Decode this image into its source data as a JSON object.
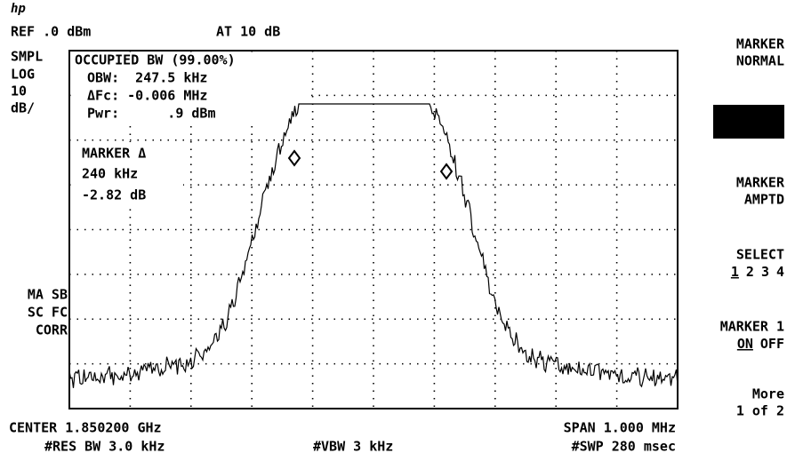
{
  "header": {
    "logo": "hp",
    "ref": "REF .0 dBm",
    "atten": "AT 10 dB"
  },
  "left_labels": [
    "SMPL",
    "LOG",
    "10",
    "dB/"
  ],
  "correction_labels": [
    "MA SB",
    "SC FC",
    "CORR"
  ],
  "measurement": {
    "title": "OCCUPIED BW (99.00%)",
    "lines": [
      "OBW:  247.5 kHz",
      "ΔFc: -0.006 MHz",
      "Pwr:      .9 dBm"
    ]
  },
  "marker": [
    "MARKER Δ",
    "240 kHz",
    "-2.82 dB"
  ],
  "footer": {
    "center": "CENTER 1.850200 GHz",
    "span": "SPAN 1.000 MHz",
    "res_bw": "#RES BW 3.0 kHz",
    "vbw": "#VBW 3 kHz",
    "sweep": "#SWP 280 msec"
  },
  "softkeys": [
    {
      "lines": [
        "MARKER",
        "NORMAL"
      ]
    },
    {
      "lines": [
        "MARKER",
        "AMPTD"
      ]
    },
    {
      "lines": [
        "SELECT"
      ],
      "options": [
        "1",
        "2",
        "3",
        "4"
      ],
      "selected": 0
    },
    {
      "lines": [
        "MARKER 1"
      ],
      "options": [
        "ON",
        "OFF"
      ],
      "selected": 0
    },
    {
      "lines": [
        "More",
        "1 of 2"
      ]
    }
  ]
}
